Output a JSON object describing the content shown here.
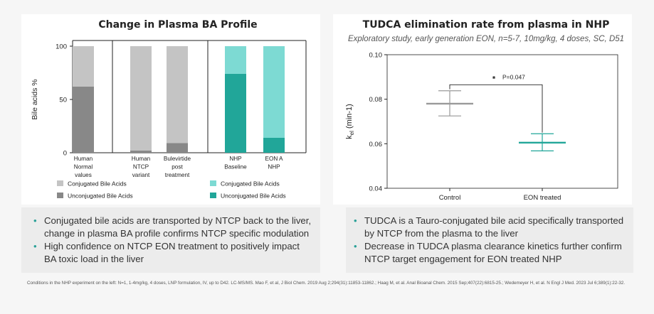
{
  "left_title": "Change in Plasma BA Profile",
  "right_title": "TUDCA elimination rate from plasma in NHP",
  "right_subtitle": "Exploratory study, early generation EON, n=5-7, 10mg/kg, 4 doses, SC, D51",
  "chart_data": [
    {
      "type": "bar",
      "stacked": true,
      "percent": true,
      "ylabel": "Bile acids %",
      "ylim": [
        0,
        100
      ],
      "yticks": [
        "0",
        "50",
        "100"
      ],
      "categories": [
        [
          "Human",
          "Normal",
          "values"
        ],
        [
          "Human",
          "NTCP",
          "variant"
        ],
        [
          "Bulevirtide",
          "post",
          "treatment"
        ],
        [
          "NHP",
          "Baseline"
        ],
        [
          "EON A",
          "NHP"
        ]
      ],
      "series": [
        {
          "name": "Unconjugated Bile Acids",
          "values": [
            62,
            2,
            9,
            74,
            14
          ],
          "colors": [
            "#888888",
            "#888888",
            "#888888",
            "#21a699",
            "#21a699"
          ]
        },
        {
          "name": "Conjugated Bile Acids",
          "values": [
            38,
            98,
            91,
            26,
            86
          ],
          "colors": [
            "#c4c4c4",
            "#c4c4c4",
            "#c4c4c4",
            "#7ddad3",
            "#7ddad3"
          ]
        }
      ],
      "legend": [
        {
          "label": "Conjugated Bile Acids",
          "color": "#c4c4c4"
        },
        {
          "label": "Unconjugated Bile Acids",
          "color": "#888888"
        },
        {
          "label": "Conjugated Bile Acids",
          "color": "#7ddad3"
        },
        {
          "label": "Unconjugated Bile Acids",
          "color": "#21a699"
        }
      ]
    },
    {
      "type": "scatter",
      "ylabel_main": "k",
      "ylabel_sub": "el",
      "ylabel_unit": " (min-1)",
      "ylim": [
        0.04,
        0.1
      ],
      "yticks": [
        "0.04",
        "0.06",
        "0.08",
        "0.10"
      ],
      "categories": [
        "Control",
        "EON treated"
      ],
      "series": [
        {
          "name": "Control",
          "mean": 0.078,
          "low": 0.0725,
          "high": 0.0838,
          "color": "#999999"
        },
        {
          "name": "EON treated",
          "mean": 0.0605,
          "low": 0.0568,
          "high": 0.0645,
          "color": "#21a699"
        }
      ],
      "annotation": {
        "star": "*",
        "text": "P=0.047"
      }
    }
  ],
  "left_bullets": [
    "Conjugated bile acids are transported by NTCP back to the liver, change in plasma BA profile confirms NTCP specific modulation",
    "High confidence on NTCP EON treatment to positively impact BA toxic load in the liver"
  ],
  "right_bullets": [
    "TUDCA is a Tauro-conjugated bile acid specifically transported by NTCP from the plasma to the liver",
    "Decrease in TUDCA plasma clearance kinetics further confirm NTCP target engagement for EON treated NHP"
  ],
  "footnote": "Conditions in the NHP experiment on the left: N=1, 1-4mg/kg, 4 doses, LNP formulation, IV, up to D42. LC-MS/MS. Mao F, et al, J Biol Chem. 2019 Aug 2;294(31):11853-11862.; Haag M, et al. Anal Bioanal Chem. 2015 Sep;407(22):6815-25.; Wedemeyer H, et al. N Engl J Med. 2023 Jul 6;389(1):22-32."
}
